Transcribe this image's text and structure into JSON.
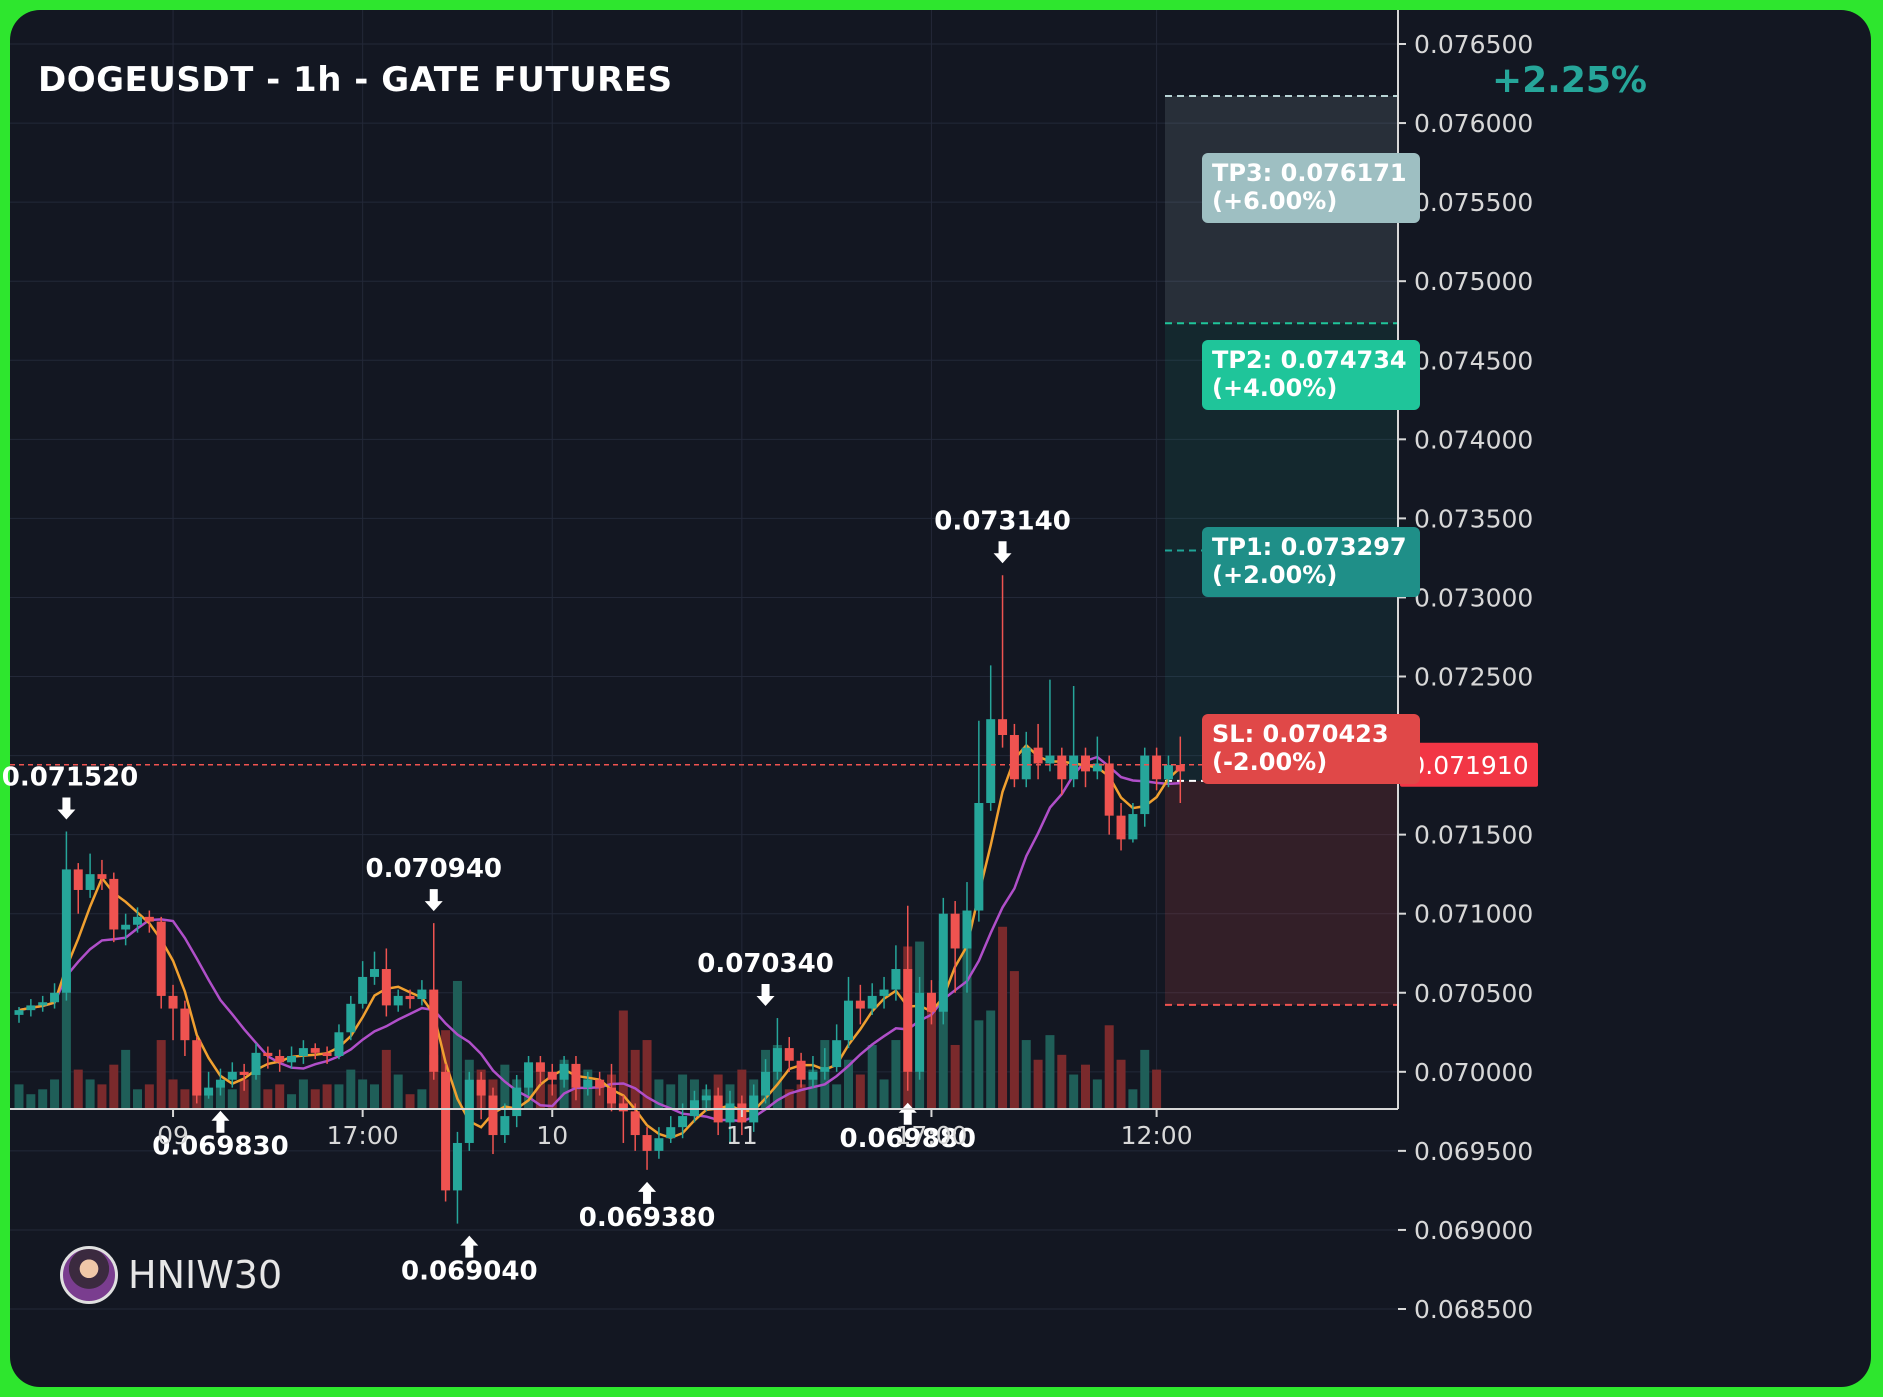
{
  "title": "DOGEUSDT - 1h - GATE FUTURES",
  "change_label": "+2.25%",
  "author": {
    "name": "HNIW30"
  },
  "colors": {
    "background": "#131722",
    "frame": "#2ee62e",
    "up": "#26a69a",
    "down": "#ef5350",
    "ma_fast": "#f0a030",
    "ma_slow": "#b04fc9",
    "tp3": "#9ebfc2",
    "tp2": "#1fc59a",
    "tp1": "#1f8f88",
    "sl": "#e04848",
    "grid": "#232838"
  },
  "targets": [
    {
      "name": "TP3",
      "text": "TP3: 0.076171",
      "pct": "(+6.00%)",
      "price": 0.076171,
      "color": "#9ebfc2"
    },
    {
      "name": "TP2",
      "text": "TP2: 0.074734",
      "pct": "(+4.00%)",
      "price": 0.074734,
      "color": "#1fc59a"
    },
    {
      "name": "TP1",
      "text": "TP1: 0.073297",
      "pct": "(+2.00%)",
      "price": 0.073297,
      "color": "#1f8f88"
    },
    {
      "name": "SL",
      "text": "SL: 0.070423",
      "pct": "(-2.00%)",
      "price": 0.070423,
      "color": "#e04848"
    }
  ],
  "chart_data": {
    "type": "candlestick",
    "symbol": "DOGEUSDT",
    "interval": "1h",
    "y_ticks": [
      "0.076500",
      "0.076000",
      "0.075500",
      "0.075000",
      "0.074500",
      "0.074000",
      "0.073500",
      "0.073000",
      "0.072500",
      "0.072000",
      "0.071500",
      "0.071000",
      "0.070500",
      "0.070000",
      "0.069500",
      "0.069000",
      "0.068500"
    ],
    "ylim": [
      0.0682,
      0.0767
    ],
    "x_ticks": [
      {
        "label": "09",
        "index": 13
      },
      {
        "label": "17:00",
        "index": 29
      },
      {
        "label": "10",
        "index": 45
      },
      {
        "label": "11",
        "index": 61
      },
      {
        "label": "17:00",
        "index": 77
      },
      {
        "label": "12:00",
        "index": 96
      }
    ],
    "last_price": {
      "label": "0.071910",
      "value": 0.07191
    },
    "reference_price": 0.07152,
    "entry_price": 0.07184,
    "extreme_labels": [
      {
        "label": "0.071520",
        "value": 0.07152,
        "index": 4,
        "kind": "high"
      },
      {
        "label": "0.069830",
        "value": 0.06983,
        "index": 17,
        "kind": "low"
      },
      {
        "label": "0.070940",
        "value": 0.07094,
        "index": 35,
        "kind": "high"
      },
      {
        "label": "0.069040",
        "value": 0.06904,
        "index": 38,
        "kind": "low"
      },
      {
        "label": "0.069380",
        "value": 0.06938,
        "index": 53,
        "kind": "low"
      },
      {
        "label": "0.070340",
        "value": 0.07034,
        "index": 63,
        "kind": "high"
      },
      {
        "label": "0.069880",
        "value": 0.06988,
        "index": 75,
        "kind": "low"
      },
      {
        "label": "0.073140",
        "value": 0.07314,
        "index": 83,
        "kind": "high"
      }
    ],
    "candles": [
      [
        0.07036,
        0.07039,
        0.07041,
        0.07031
      ],
      [
        0.07039,
        0.07042,
        0.07046,
        0.07035
      ],
      [
        0.07042,
        0.07044,
        0.07048,
        0.07038
      ],
      [
        0.07044,
        0.0705,
        0.07056,
        0.0704
      ],
      [
        0.0705,
        0.07128,
        0.07152,
        0.07045
      ],
      [
        0.07128,
        0.07115,
        0.07132,
        0.071
      ],
      [
        0.07115,
        0.07125,
        0.07138,
        0.0711
      ],
      [
        0.07125,
        0.07122,
        0.07134,
        0.07115
      ],
      [
        0.07122,
        0.0709,
        0.07126,
        0.07082
      ],
      [
        0.0709,
        0.07093,
        0.071,
        0.0708
      ],
      [
        0.07093,
        0.07098,
        0.07104,
        0.07088
      ],
      [
        0.07098,
        0.07095,
        0.07102,
        0.07088
      ],
      [
        0.07095,
        0.07048,
        0.07098,
        0.0704
      ],
      [
        0.07048,
        0.0704,
        0.07055,
        0.0702
      ],
      [
        0.0704,
        0.0702,
        0.07045,
        0.0701
      ],
      [
        0.0702,
        0.06985,
        0.07022,
        0.0698
      ],
      [
        0.06985,
        0.0699,
        0.07,
        0.06983
      ],
      [
        0.0699,
        0.06995,
        0.07002,
        0.06985
      ],
      [
        0.06995,
        0.07,
        0.07006,
        0.0699
      ],
      [
        0.07,
        0.06998,
        0.07005,
        0.06988
      ],
      [
        0.06998,
        0.07012,
        0.07018,
        0.06995
      ],
      [
        0.07012,
        0.0701,
        0.07016,
        0.07002
      ],
      [
        0.0701,
        0.07006,
        0.07014,
        0.07
      ],
      [
        0.07006,
        0.0701,
        0.07016,
        0.07002
      ],
      [
        0.0701,
        0.07015,
        0.0702,
        0.07005
      ],
      [
        0.07015,
        0.07012,
        0.07018,
        0.07008
      ],
      [
        0.07012,
        0.0701,
        0.07016,
        0.07005
      ],
      [
        0.0701,
        0.07025,
        0.0703,
        0.07008
      ],
      [
        0.07025,
        0.07043,
        0.07048,
        0.0702
      ],
      [
        0.07043,
        0.0706,
        0.0707,
        0.0704
      ],
      [
        0.0706,
        0.07065,
        0.07076,
        0.07055
      ],
      [
        0.07065,
        0.07042,
        0.07078,
        0.07035
      ],
      [
        0.07042,
        0.07048,
        0.07052,
        0.07038
      ],
      [
        0.07048,
        0.07046,
        0.07052,
        0.0704
      ],
      [
        0.07046,
        0.07052,
        0.07058,
        0.07042
      ],
      [
        0.07052,
        0.07,
        0.07094,
        0.06995
      ],
      [
        0.07,
        0.06925,
        0.07005,
        0.06918
      ],
      [
        0.06925,
        0.06955,
        0.06962,
        0.06904
      ],
      [
        0.06955,
        0.06995,
        0.07,
        0.0695
      ],
      [
        0.06995,
        0.06985,
        0.07,
        0.0697
      ],
      [
        0.06985,
        0.0696,
        0.0699,
        0.06948
      ],
      [
        0.0696,
        0.06972,
        0.0698,
        0.06955
      ],
      [
        0.06972,
        0.0699,
        0.06998,
        0.06965
      ],
      [
        0.0699,
        0.07006,
        0.0701,
        0.06985
      ],
      [
        0.07006,
        0.07,
        0.0701,
        0.06992
      ],
      [
        0.07,
        0.06995,
        0.07005,
        0.06985
      ],
      [
        0.06995,
        0.07005,
        0.0701,
        0.0699
      ],
      [
        0.07005,
        0.0699,
        0.0701,
        0.06982
      ],
      [
        0.0699,
        0.06995,
        0.07,
        0.06985
      ],
      [
        0.06995,
        0.0699,
        0.07,
        0.06985
      ],
      [
        0.0699,
        0.0698,
        0.07005,
        0.06975
      ],
      [
        0.0698,
        0.06975,
        0.06985,
        0.06955
      ],
      [
        0.06975,
        0.0696,
        0.0698,
        0.0695
      ],
      [
        0.0696,
        0.0695,
        0.06965,
        0.06938
      ],
      [
        0.0695,
        0.06958,
        0.06965,
        0.06945
      ],
      [
        0.06958,
        0.06965,
        0.06972,
        0.06955
      ],
      [
        0.06965,
        0.06972,
        0.0698,
        0.06958
      ],
      [
        0.06972,
        0.06982,
        0.06988,
        0.06968
      ],
      [
        0.06982,
        0.06985,
        0.06992,
        0.06975
      ],
      [
        0.06985,
        0.06968,
        0.0699,
        0.0696
      ],
      [
        0.06968,
        0.0698,
        0.06988,
        0.06955
      ],
      [
        0.0698,
        0.06968,
        0.06985,
        0.0696
      ],
      [
        0.06968,
        0.06985,
        0.06992,
        0.06962
      ],
      [
        0.06985,
        0.07,
        0.07008,
        0.0698
      ],
      [
        0.07,
        0.07015,
        0.07034,
        0.06995
      ],
      [
        0.07015,
        0.07007,
        0.07022,
        0.07
      ],
      [
        0.07007,
        0.06995,
        0.07012,
        0.0699
      ],
      [
        0.06995,
        0.07,
        0.0701,
        0.0699
      ],
      [
        0.07,
        0.07003,
        0.07015,
        0.06995
      ],
      [
        0.07003,
        0.0702,
        0.0703,
        0.07
      ],
      [
        0.0702,
        0.07045,
        0.0706,
        0.07015
      ],
      [
        0.07045,
        0.0704,
        0.07055,
        0.0703
      ],
      [
        0.0704,
        0.07048,
        0.07056,
        0.07036
      ],
      [
        0.07048,
        0.07052,
        0.0706,
        0.0704
      ],
      [
        0.07052,
        0.07065,
        0.0708,
        0.07045
      ],
      [
        0.07065,
        0.07,
        0.07105,
        0.06988
      ],
      [
        0.07,
        0.0705,
        0.0706,
        0.06995
      ],
      [
        0.0705,
        0.07038,
        0.07058,
        0.0703
      ],
      [
        0.07038,
        0.071,
        0.0711,
        0.0703
      ],
      [
        0.071,
        0.07078,
        0.07108,
        0.0705
      ],
      [
        0.07078,
        0.07102,
        0.0712,
        0.0705
      ],
      [
        0.07102,
        0.0717,
        0.07222,
        0.07095
      ],
      [
        0.0717,
        0.07223,
        0.07257,
        0.07165
      ],
      [
        0.07223,
        0.07213,
        0.07314,
        0.07205
      ],
      [
        0.07213,
        0.07185,
        0.0722,
        0.0718
      ],
      [
        0.07185,
        0.07205,
        0.07215,
        0.0718
      ],
      [
        0.07205,
        0.07195,
        0.0722,
        0.07185
      ],
      [
        0.07195,
        0.072,
        0.07248,
        0.0719
      ],
      [
        0.072,
        0.07185,
        0.07205,
        0.07175
      ],
      [
        0.07185,
        0.072,
        0.07244,
        0.0718
      ],
      [
        0.072,
        0.0719,
        0.07205,
        0.0718
      ],
      [
        0.0719,
        0.07195,
        0.07212,
        0.07185
      ],
      [
        0.07195,
        0.07162,
        0.072,
        0.0715
      ],
      [
        0.07162,
        0.07147,
        0.0717,
        0.0714
      ],
      [
        0.07147,
        0.07163,
        0.0717,
        0.07145
      ],
      [
        0.07163,
        0.072,
        0.07205,
        0.07155
      ],
      [
        0.072,
        0.07185,
        0.07205,
        0.07178
      ],
      [
        0.07185,
        0.07194,
        0.072,
        0.0718
      ],
      [
        0.07194,
        0.0719,
        0.07212,
        0.0717
      ]
    ],
    "volume": [
      5,
      3,
      4,
      6,
      27,
      8,
      6,
      5,
      9,
      12,
      4,
      5,
      14,
      6,
      4,
      10,
      3,
      5,
      4,
      6,
      8,
      4,
      5,
      3,
      6,
      4,
      5,
      5,
      8,
      6,
      5,
      12,
      7,
      3,
      4,
      11,
      16,
      26,
      10,
      8,
      6,
      9,
      6,
      5,
      9,
      5,
      10,
      6,
      8,
      5,
      7,
      20,
      12,
      14,
      6,
      5,
      7,
      6,
      4,
      7,
      5,
      8,
      6,
      12,
      13,
      4,
      5,
      8,
      14,
      5,
      10,
      7,
      13,
      6,
      14,
      33,
      34,
      23,
      26,
      13,
      40,
      18,
      20,
      37,
      28,
      14,
      10,
      15,
      11,
      7,
      9,
      6,
      17,
      10,
      4,
      12,
      8
    ]
  }
}
